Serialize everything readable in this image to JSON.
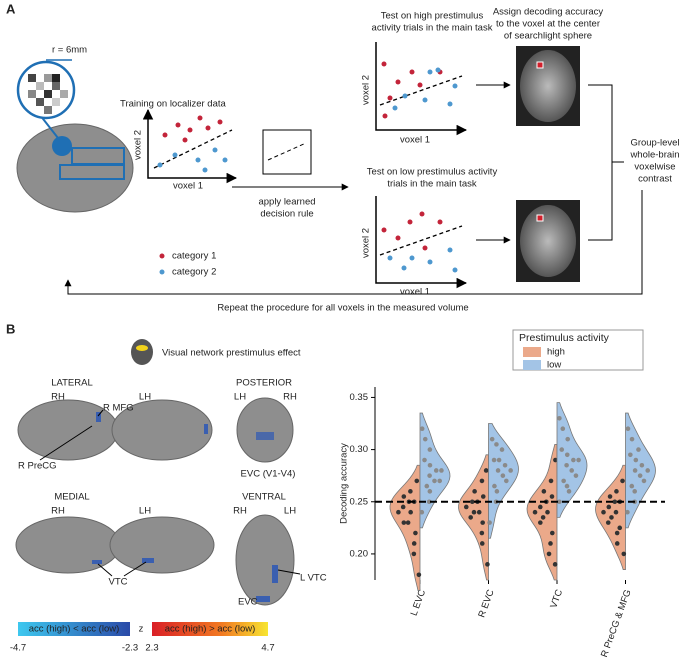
{
  "panel_a": {
    "label": "A",
    "radius": "r = 6mm",
    "training": "Training on localizer data",
    "voxel_2": "voxel 2",
    "voxel_1": "voxel 1",
    "legend": [
      "category 1",
      "category 2"
    ],
    "rule": [
      "apply learned",
      "decision rule"
    ],
    "test_high": [
      "Test on high prestimulus",
      "activity trials in the main task"
    ],
    "test_low": [
      "Test on low prestimulus activity",
      "trials in the main task"
    ],
    "assign": [
      "Assign decoding  accuracy",
      "to the voxel at the center",
      "of searchlight sphere"
    ],
    "group": [
      "Group-level",
      "whole-brain",
      "voxelwise",
      "contrast"
    ],
    "repeat": "Repeat the procedure for all voxels in the measured volume"
  },
  "panel_b": {
    "label": "B",
    "network": "Visual network prestimulus effect",
    "lateral": {
      "title": "LATERAL",
      "left": "RH",
      "right": "LH",
      "labels": [
        "R MFG",
        "R PreCG"
      ]
    },
    "posterior": {
      "title": "POSTERIOR",
      "left": "LH",
      "right": "RH",
      "labels": [
        "EVC (V1-V4)"
      ]
    },
    "medial": {
      "title": "MEDIAL",
      "left": "RH",
      "right": "LH",
      "labels": [
        "VTC"
      ]
    },
    "ventral": {
      "title": "VENTRAL",
      "left": "RH",
      "right": "LH",
      "labels": [
        "L VTC",
        "EVC"
      ]
    },
    "colorbar": {
      "z": "z",
      "negative": "acc (high) < acc (low)",
      "positive": "acc (high) > acc (low)",
      "ticks": [
        -4.7,
        -2.3,
        2.3,
        4.7
      ]
    }
  },
  "chart_data": {
    "type": "violin",
    "ylabel": "Decoding accuracy",
    "categories": [
      "L EVC",
      "R EVC",
      "VTC",
      "R PreCG & MFG"
    ],
    "legend_title": "Prestimulus activity",
    "legend": "upper right",
    "ylim": [
      0.175,
      0.36
    ],
    "yticks": [
      {
        "value": 0.2,
        "label": "0.20"
      },
      0.25,
      {
        "value": 0.3,
        "label": "0.30"
      },
      0.35
    ],
    "reference_line": 0.25,
    "series": [
      {
        "name": "high",
        "color": "#eba98a",
        "point_color": "#333333",
        "values": [
          [
            0.18,
            0.2,
            0.21,
            0.22,
            0.23,
            0.23,
            0.24,
            0.24,
            0.245,
            0.25,
            0.25,
            0.255,
            0.26,
            0.27
          ],
          [
            0.19,
            0.21,
            0.22,
            0.23,
            0.235,
            0.24,
            0.24,
            0.245,
            0.25,
            0.25,
            0.255,
            0.26,
            0.27,
            0.28
          ],
          [
            0.19,
            0.2,
            0.21,
            0.22,
            0.23,
            0.235,
            0.24,
            0.24,
            0.245,
            0.25,
            0.255,
            0.26,
            0.27,
            0.29
          ],
          [
            0.2,
            0.21,
            0.22,
            0.225,
            0.23,
            0.235,
            0.24,
            0.24,
            0.245,
            0.25,
            0.25,
            0.255,
            0.26,
            0.27
          ]
        ]
      },
      {
        "name": "low",
        "color": "#a3c4e6",
        "point_color": "#8a8a8a",
        "values": [
          [
            0.24,
            0.25,
            0.26,
            0.265,
            0.27,
            0.27,
            0.275,
            0.28,
            0.28,
            0.285,
            0.29,
            0.3,
            0.31,
            0.32
          ],
          [
            0.23,
            0.25,
            0.26,
            0.265,
            0.27,
            0.275,
            0.28,
            0.28,
            0.285,
            0.29,
            0.29,
            0.3,
            0.305,
            0.31
          ],
          [
            0.25,
            0.26,
            0.265,
            0.27,
            0.275,
            0.28,
            0.285,
            0.29,
            0.29,
            0.295,
            0.3,
            0.31,
            0.32,
            0.33
          ],
          [
            0.24,
            0.25,
            0.26,
            0.265,
            0.27,
            0.275,
            0.28,
            0.28,
            0.285,
            0.29,
            0.295,
            0.3,
            0.31,
            0.32
          ]
        ]
      }
    ]
  }
}
